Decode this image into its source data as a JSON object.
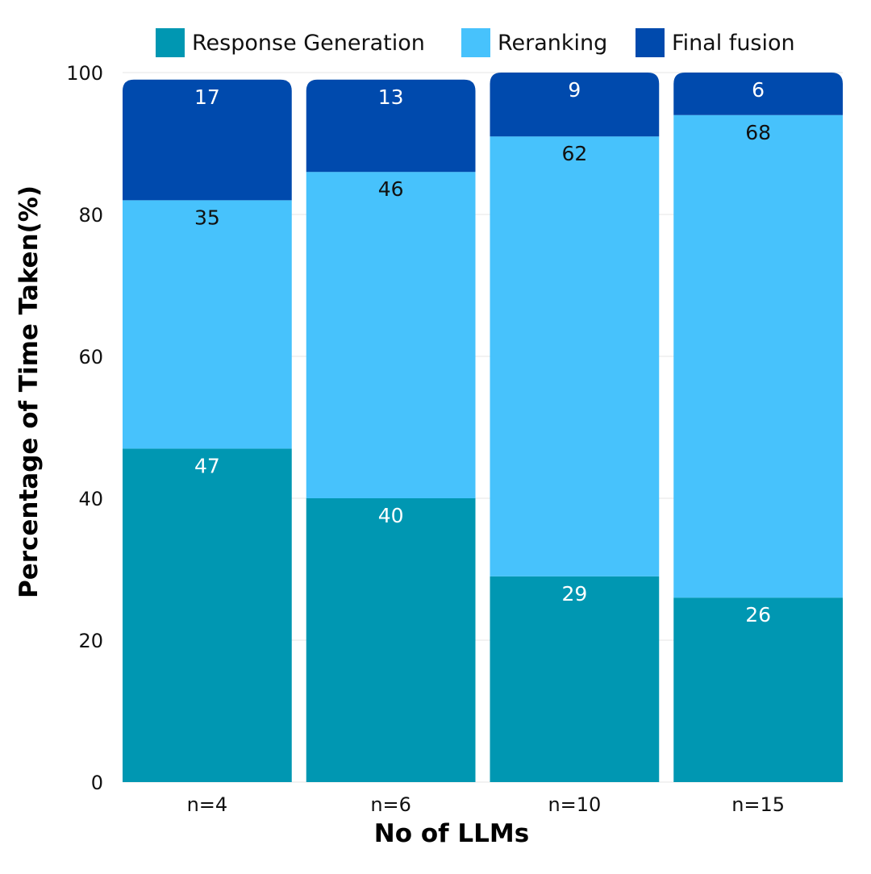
{
  "chart_data": {
    "type": "bar",
    "stacked": true,
    "categories": [
      "n=4",
      "n=6",
      "n=10",
      "n=15"
    ],
    "series": [
      {
        "name": "Response Generation",
        "values": [
          47,
          40,
          29,
          26
        ],
        "color": "#0097b2",
        "label_color": "#ffffff"
      },
      {
        "name": "Reranking",
        "values": [
          35,
          46,
          62,
          68
        ],
        "color": "#47c2fc",
        "label_color": "#111111"
      },
      {
        "name": "Final fusion",
        "values": [
          17,
          13,
          9,
          6
        ],
        "color": "#004aad",
        "label_color": "#ffffff"
      }
    ],
    "xlabel": "No of LLMs",
    "ylabel": "Percentage of Time Taken(%)",
    "ylim": [
      0,
      100
    ],
    "yticks": [
      "0",
      "20",
      "40",
      "60",
      "80",
      "100"
    ],
    "grid": true,
    "legend_position": "top"
  }
}
